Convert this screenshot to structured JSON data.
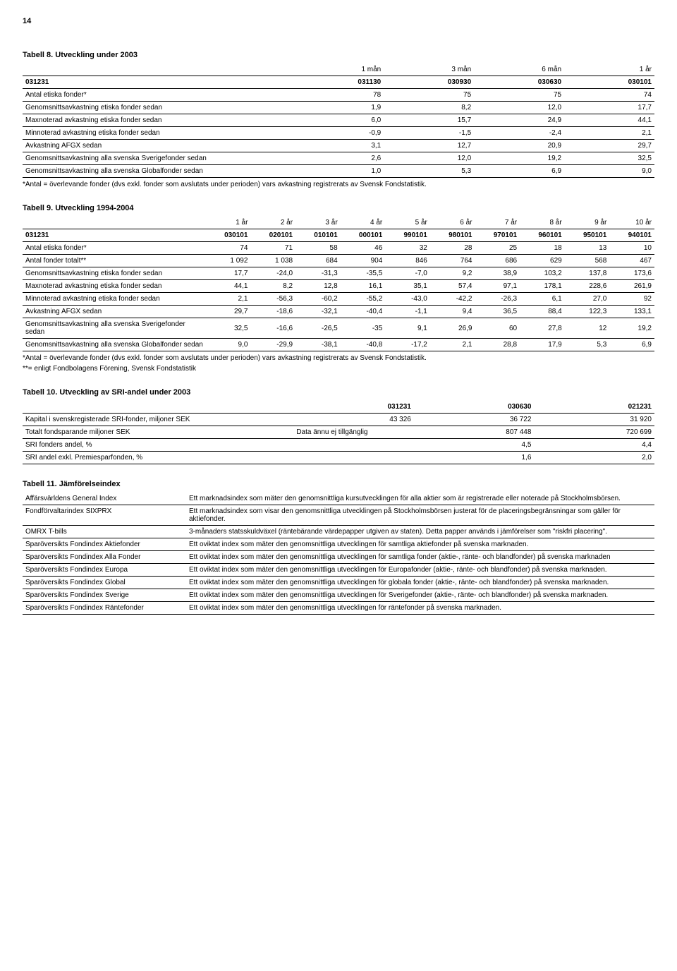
{
  "page_number": "14",
  "table8": {
    "title": "Tabell 8. Utveckling under 2003",
    "header_top": [
      "",
      "1 mån",
      "3 mån",
      "6 mån",
      "1 år"
    ],
    "header_bot": [
      "031231",
      "031130",
      "030930",
      "030630",
      "030101"
    ],
    "rows": [
      [
        "Antal etiska fonder*",
        "78",
        "75",
        "75",
        "74"
      ],
      [
        "Genomsnittsavkastning etiska fonder sedan",
        "1,9",
        "8,2",
        "12,0",
        "17,7"
      ],
      [
        "Maxnoterad avkastning etiska fonder sedan",
        "6,0",
        "15,7",
        "24,9",
        "44,1"
      ],
      [
        "Minnoterad avkastning etiska fonder sedan",
        "-0,9",
        "-1,5",
        "-2,4",
        "2,1"
      ],
      [
        "Avkastning AFGX sedan",
        "3,1",
        "12,7",
        "20,9",
        "29,7"
      ],
      [
        "Genomsnittsavkastning alla svenska Sverigefonder sedan",
        "2,6",
        "12,0",
        "19,2",
        "32,5"
      ],
      [
        "Genomsnittsavkastning alla svenska Globalfonder sedan",
        "1,0",
        "5,3",
        "6,9",
        "9,0"
      ]
    ],
    "footnote": "*Antal = överlevande fonder (dvs exkl. fonder som avslutats under perioden) vars avkastning registrerats av Svensk Fondstatistik."
  },
  "table9": {
    "title": "Tabell 9. Utveckling 1994-2004",
    "header_top": [
      "",
      "1 år",
      "2 år",
      "3 år",
      "4 år",
      "5 år",
      "6 år",
      "7 år",
      "8 år",
      "9 år",
      "10 år"
    ],
    "header_bot": [
      "031231",
      "030101",
      "020101",
      "010101",
      "000101",
      "990101",
      "980101",
      "970101",
      "960101",
      "950101",
      "940101"
    ],
    "rows": [
      [
        "Antal etiska fonder*",
        "74",
        "71",
        "58",
        "46",
        "32",
        "28",
        "25",
        "18",
        "13",
        "10"
      ],
      [
        "Antal fonder totalt**",
        "1 092",
        "1 038",
        "684",
        "904",
        "846",
        "764",
        "686",
        "629",
        "568",
        "467"
      ],
      [
        "Genomsnittsavkastning etiska fonder sedan",
        "17,7",
        "-24,0",
        "-31,3",
        "-35,5",
        "-7,0",
        "9,2",
        "38,9",
        "103,2",
        "137,8",
        "173,6"
      ],
      [
        "Maxnoterad avkastning etiska fonder sedan",
        "44,1",
        "8,2",
        "12,8",
        "16,1",
        "35,1",
        "57,4",
        "97,1",
        "178,1",
        "228,6",
        "261,9"
      ],
      [
        "Minnoterad avkastning etiska fonder sedan",
        "2,1",
        "-56,3",
        "-60,2",
        "-55,2",
        "-43,0",
        "-42,2",
        "-26,3",
        "6,1",
        "27,0",
        "92"
      ],
      [
        "Avkastning AFGX sedan",
        "29,7",
        "-18,6",
        "-32,1",
        "-40,4",
        "-1,1",
        "9,4",
        "36,5",
        "88,4",
        "122,3",
        "133,1"
      ],
      [
        "Genomsnittsavkastning alla svenska Sverigefonder sedan",
        "32,5",
        "-16,6",
        "-26,5",
        "-35",
        "9,1",
        "26,9",
        "60",
        "27,8",
        "12",
        "19,2"
      ],
      [
        "Genomsnittsavkastning alla svenska Globalfonder sedan",
        "9,0",
        "-29,9",
        "-38,1",
        "-40,8",
        "-17,2",
        "2,1",
        "28,8",
        "17,9",
        "5,3",
        "6,9"
      ]
    ],
    "footnote1": "*Antal = överlevande fonder (dvs exkl. fonder som avslutats under perioden) vars avkastning registrerats av Svensk Fondstatistik.",
    "footnote2": "**= enligt Fondbolagens Förening, Svensk Fondstatistik"
  },
  "table10": {
    "title": "Tabell 10. Utveckling av SRI-andel under 2003",
    "header": [
      "",
      "031231",
      "030630",
      "021231"
    ],
    "rows": [
      [
        "Kapital i svenskregisterade SRI-fonder, miljoner SEK",
        "43 326",
        "36 722",
        "31 920"
      ],
      [
        "Totalt fondsparande miljoner SEK",
        "Data ännu ej tillgänglig",
        "807 448",
        "720 699"
      ],
      [
        "SRI fonders andel, %",
        "",
        "4,5",
        "4,4"
      ],
      [
        "SRI andel exkl. Premiesparfonden, %",
        "",
        "1,6",
        "2,0"
      ]
    ]
  },
  "table11": {
    "title": "Tabell 11. Jämförelseindex",
    "rows": [
      [
        "Affärsvärldens General Index",
        "Ett marknadsindex som mäter den genomsnittliga kursutvecklingen för alla aktier som är registrerade eller noterade på Stockholmsbörsen."
      ],
      [
        "Fondförvaltarindex SIXPRX",
        "Ett marknadsindex som visar den genomsnittliga utvecklingen på Stockholmsbörsen justerat för de placeringsbegränsningar som gäller för aktiefonder."
      ],
      [
        "OMRX T-bills",
        "3-månaders statsskuldväxel (räntebärande värdepapper utgiven av staten). Detta papper används i jämförelser som \"riskfri placering\"."
      ],
      [
        "Sparöversikts Fondindex Aktiefonder",
        "Ett oviktat index som mäter den genomsnittliga utvecklingen för samtliga aktiefonder på svenska marknaden."
      ],
      [
        "Sparöversikts Fondindex Alla Fonder",
        "Ett oviktat index som mäter den genomsnittliga utvecklingen för samtliga fonder (aktie-, ränte- och blandfonder) på svenska marknaden"
      ],
      [
        "Sparöversikts Fondindex Europa",
        "Ett oviktat index som mäter den genomsnittliga utvecklingen för Europafonder (aktie-, ränte- och blandfonder) på svenska marknaden."
      ],
      [
        "Sparöversikts Fondindex Global",
        "Ett oviktat index som mäter den genomsnittliga utvecklingen för globala fonder (aktie-, ränte- och blandfonder) på svenska marknaden."
      ],
      [
        "Sparöversikts Fondindex Sverige",
        "Ett oviktat index som mäter den genomsnittliga utvecklingen för Sverigefonder (aktie-, ränte- och blandfonder) på svenska marknaden."
      ],
      [
        "Sparöversikts Fondindex Räntefonder",
        "Ett oviktat index som mäter den genomsnittliga utvecklingen för räntefonder på svenska marknaden."
      ]
    ]
  }
}
